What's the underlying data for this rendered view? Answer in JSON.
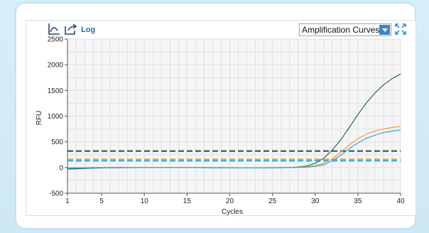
{
  "toolbar": {
    "log_label": "Log",
    "chart_mode_selected": "Amplification Curves",
    "icons": [
      "chart-axis-icon",
      "export-icon",
      "expand-icon"
    ]
  },
  "chart_data": {
    "type": "line",
    "title": "",
    "xlabel": "Cycles",
    "ylabel": "RFU",
    "xlim": [
      1,
      40
    ],
    "ylim": [
      -500,
      2500
    ],
    "x_ticks": [
      1,
      5,
      10,
      15,
      20,
      25,
      30,
      35,
      40
    ],
    "y_ticks": [
      -500,
      0,
      500,
      1000,
      1500,
      2000,
      2500
    ],
    "grid": true,
    "series": [
      {
        "color": "#1f6b4a",
        "x": [
          1,
          2,
          3,
          4,
          5,
          6,
          7,
          8,
          9,
          10,
          11,
          12,
          13,
          14,
          15,
          16,
          17,
          18,
          19,
          20,
          21,
          22,
          23,
          24,
          25,
          26,
          27,
          28,
          29,
          30,
          31,
          32,
          33,
          34,
          35,
          36,
          37,
          38,
          39,
          40
        ],
        "values": [
          -30,
          -25,
          -18,
          -12,
          -8,
          -5,
          -3,
          -2,
          -1,
          0,
          0,
          0,
          0,
          0,
          0,
          0,
          -2,
          -3,
          -4,
          -5,
          -6,
          -7,
          -7,
          -6,
          -5,
          -3,
          2,
          10,
          30,
          80,
          180,
          340,
          540,
          780,
          1030,
          1260,
          1450,
          1610,
          1730,
          1820
        ]
      },
      {
        "color": "#f0a030",
        "x": [
          1,
          2,
          3,
          4,
          5,
          6,
          7,
          8,
          9,
          10,
          11,
          12,
          13,
          14,
          15,
          16,
          17,
          18,
          19,
          20,
          21,
          22,
          23,
          24,
          25,
          26,
          27,
          28,
          29,
          30,
          31,
          32,
          33,
          34,
          35,
          36,
          37,
          38,
          39,
          40
        ],
        "values": [
          -5,
          -3,
          -2,
          -1,
          0,
          1,
          2,
          2,
          3,
          3,
          3,
          3,
          3,
          3,
          3,
          2,
          1,
          0,
          -1,
          -2,
          -3,
          -3,
          -3,
          -3,
          -2,
          -1,
          1,
          5,
          14,
          35,
          80,
          170,
          300,
          440,
          560,
          650,
          710,
          750,
          780,
          800
        ]
      },
      {
        "color": "#2aa8d8",
        "x": [
          1,
          2,
          3,
          4,
          5,
          6,
          7,
          8,
          9,
          10,
          11,
          12,
          13,
          14,
          15,
          16,
          17,
          18,
          19,
          20,
          21,
          22,
          23,
          24,
          25,
          26,
          27,
          28,
          29,
          30,
          31,
          32,
          33,
          34,
          35,
          36,
          37,
          38,
          39,
          40
        ],
        "values": [
          -10,
          -8,
          -6,
          -4,
          -3,
          -2,
          -1,
          -1,
          0,
          0,
          0,
          0,
          0,
          0,
          -1,
          -1,
          -2,
          -3,
          -4,
          -5,
          -6,
          -6,
          -6,
          -5,
          -4,
          -3,
          -1,
          2,
          8,
          22,
          55,
          130,
          240,
          370,
          480,
          570,
          630,
          680,
          710,
          730
        ]
      }
    ],
    "thresholds": [
      {
        "value": 320,
        "color": "#1f4f3a",
        "style": "dashed"
      },
      {
        "value": 160,
        "color": "#f0a030",
        "style": "dashed"
      },
      {
        "value": 130,
        "color": "#2aa8d8",
        "style": "dashed"
      }
    ]
  }
}
